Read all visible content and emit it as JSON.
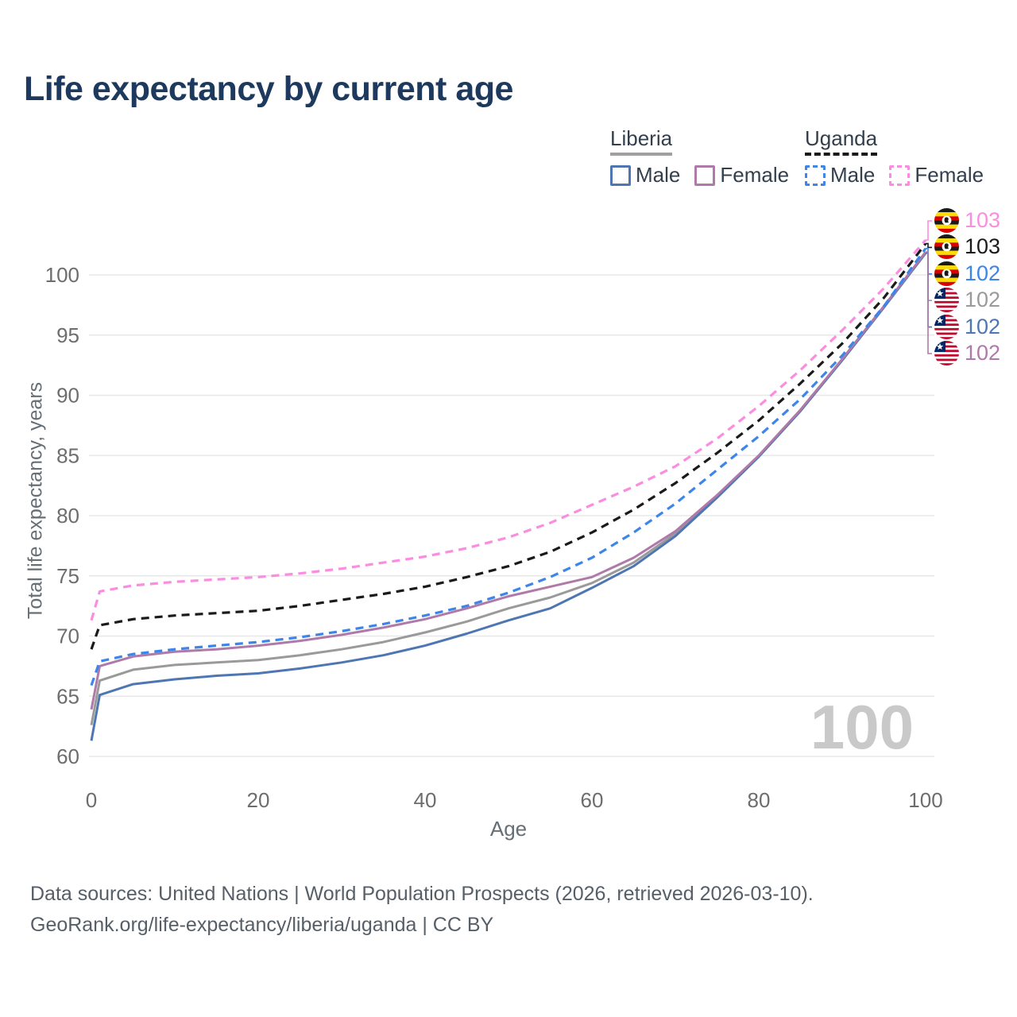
{
  "title": "Life expectancy by current age",
  "legend": {
    "groups": [
      {
        "label": "Liberia",
        "series_key": "liberia_total",
        "items": [
          {
            "label": "Male",
            "series_key": "liberia_male"
          },
          {
            "label": "Female",
            "series_key": "liberia_female"
          }
        ]
      },
      {
        "label": "Uganda",
        "series_key": "uganda_total",
        "items": [
          {
            "label": "Male",
            "series_key": "uganda_male"
          },
          {
            "label": "Female",
            "series_key": "uganda_female"
          }
        ]
      }
    ]
  },
  "colors": {
    "liberia_male": "#4d76b2",
    "liberia_female": "#af7aa9",
    "liberia_total": "#9a9a9a",
    "uganda_male": "#3d85e8",
    "uganda_female": "#fb8de1",
    "uganda_total": "#1a1a1a",
    "title": "#1d3a5e",
    "grid": "#e8e8e8",
    "tick": "#6d6d6d",
    "watermark": "#c9c9c9"
  },
  "chart_data": {
    "type": "line",
    "title": "Life expectancy by current age",
    "x_label": "Age",
    "y_label": "Total life expectancy, years",
    "xlim": [
      0,
      100
    ],
    "ylim": [
      60,
      103
    ],
    "x_ticks": [
      0,
      20,
      40,
      60,
      80,
      100
    ],
    "y_ticks": [
      60,
      65,
      70,
      75,
      80,
      85,
      90,
      95,
      100
    ],
    "grid": "horizontal",
    "x": [
      0,
      1,
      5,
      10,
      15,
      20,
      25,
      30,
      35,
      40,
      45,
      50,
      55,
      60,
      65,
      70,
      75,
      80,
      85,
      90,
      95,
      100
    ],
    "series": [
      {
        "name": "Liberia Both sexes",
        "key": "liberia_total",
        "style": "solid",
        "values": [
          62.6,
          66.3,
          67.2,
          67.6,
          67.8,
          68.0,
          68.4,
          68.9,
          69.5,
          70.3,
          71.2,
          72.3,
          73.2,
          74.4,
          76.1,
          78.5,
          81.6,
          84.9,
          88.7,
          93.0,
          97.4,
          101.85
        ]
      },
      {
        "name": "Liberia Male",
        "key": "liberia_male",
        "style": "solid",
        "values": [
          61.3,
          65.1,
          66.0,
          66.4,
          66.7,
          66.9,
          67.3,
          67.8,
          68.4,
          69.2,
          70.2,
          71.3,
          72.3,
          74.0,
          75.8,
          78.3,
          81.5,
          84.9,
          88.7,
          92.9,
          97.3,
          101.8
        ]
      },
      {
        "name": "Liberia Female",
        "key": "liberia_female",
        "style": "solid",
        "values": [
          63.9,
          67.5,
          68.3,
          68.7,
          68.9,
          69.2,
          69.6,
          70.1,
          70.7,
          71.4,
          72.3,
          73.3,
          74.1,
          74.9,
          76.5,
          78.7,
          81.7,
          85.0,
          88.8,
          93.0,
          97.4,
          101.9
        ]
      },
      {
        "name": "Uganda Male",
        "key": "uganda_male",
        "style": "dashed",
        "values": [
          65.9,
          67.9,
          68.5,
          68.9,
          69.2,
          69.5,
          69.9,
          70.4,
          71.0,
          71.7,
          72.5,
          73.6,
          74.9,
          76.5,
          78.6,
          81.0,
          83.8,
          86.6,
          89.7,
          93.3,
          97.4,
          102.2
        ]
      },
      {
        "name": "Uganda Both sexes",
        "key": "uganda_total",
        "style": "dashed",
        "values": [
          68.9,
          70.9,
          71.4,
          71.7,
          71.9,
          72.1,
          72.5,
          73.0,
          73.5,
          74.1,
          74.9,
          75.8,
          77.0,
          78.6,
          80.5,
          82.7,
          85.2,
          87.9,
          91.0,
          94.3,
          98.1,
          102.6
        ]
      },
      {
        "name": "Uganda Female",
        "key": "uganda_female",
        "style": "dashed",
        "values": [
          71.3,
          73.7,
          74.2,
          74.5,
          74.7,
          74.9,
          75.2,
          75.6,
          76.1,
          76.6,
          77.3,
          78.2,
          79.4,
          80.9,
          82.4,
          84.1,
          86.4,
          89.1,
          92.1,
          95.4,
          98.9,
          102.9
        ]
      }
    ]
  },
  "end_labels": [
    {
      "value": "103",
      "flag": "uganda",
      "series_key": "uganda_female"
    },
    {
      "value": "103",
      "flag": "uganda",
      "series_key": "uganda_total"
    },
    {
      "value": "102",
      "flag": "uganda",
      "series_key": "uganda_male"
    },
    {
      "value": "102",
      "flag": "liberia",
      "series_key": "liberia_total"
    },
    {
      "value": "102",
      "flag": "liberia",
      "series_key": "liberia_male"
    },
    {
      "value": "102",
      "flag": "liberia",
      "series_key": "liberia_female"
    }
  ],
  "watermark": "100",
  "footer": {
    "line1": "Data sources: United Nations | World Population Prospects (2026, retrieved 2026-03-10).",
    "line2": "GeoRank.org/life-expectancy/liberia/uganda | CC BY"
  }
}
